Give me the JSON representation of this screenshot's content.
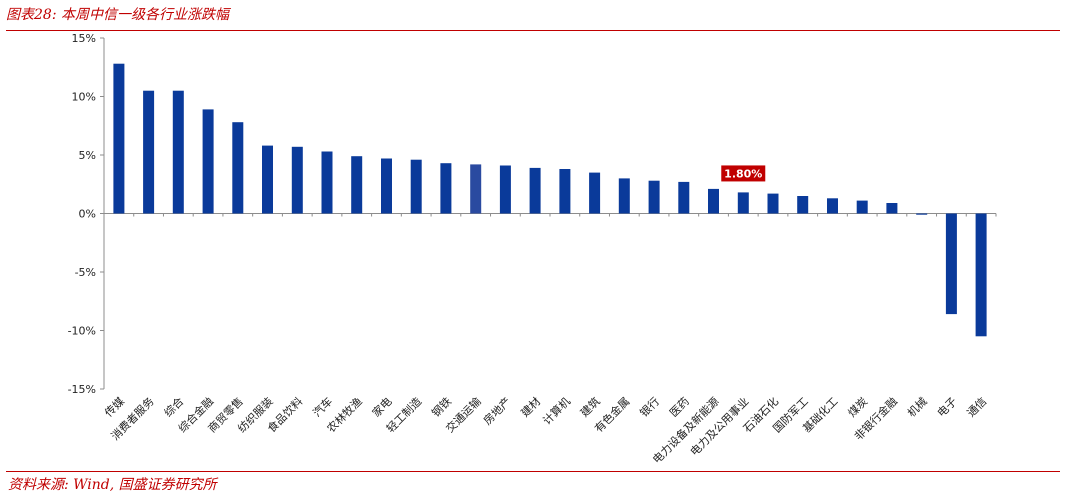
{
  "header": {
    "title": "图表28:  本周中信一级各行业涨跌幅"
  },
  "footer": {
    "source": "资料来源:  Wind,  国盛证券研究所"
  },
  "colors": {
    "bar": "#0a3a9a",
    "highlight_bar": "#2a4aa0",
    "accent": "#c00000",
    "axis": "#8c8c8c"
  },
  "chart_data": {
    "type": "bar",
    "title": "",
    "xlabel": "",
    "ylabel": "",
    "ylim": [
      -15,
      15
    ],
    "yticks": [
      15,
      10,
      5,
      0,
      -5,
      -10,
      -15
    ],
    "ytick_labels": [
      "15%",
      "10%",
      "5%",
      "0%",
      "-5%",
      "-10%",
      "-15%"
    ],
    "categories": [
      "传媒",
      "消费者服务",
      "综合",
      "综合金融",
      "商贸零售",
      "纺织服装",
      "食品饮料",
      "汽车",
      "农林牧渔",
      "家电",
      "轻工制造",
      "钢铁",
      "交通运输",
      "房地产",
      "建材",
      "计算机",
      "建筑",
      "有色金属",
      "银行",
      "医药",
      "电力设备及新能源",
      "电力及公用事业",
      "石油石化",
      "国防军工",
      "基础化工",
      "煤炭",
      "非银行金融",
      "机械",
      "电子",
      "通信"
    ],
    "values": [
      12.8,
      10.5,
      10.5,
      8.9,
      7.8,
      5.8,
      5.7,
      5.3,
      4.9,
      4.7,
      4.6,
      4.3,
      4.2,
      4.1,
      3.9,
      3.8,
      3.5,
      3.0,
      2.8,
      2.7,
      2.1,
      1.8,
      1.7,
      1.5,
      1.3,
      1.1,
      0.9,
      -0.1,
      -8.6,
      -10.5
    ],
    "highlight_index": 12,
    "annotation": {
      "index": 21,
      "label": "1.80%"
    },
    "grid": false
  }
}
